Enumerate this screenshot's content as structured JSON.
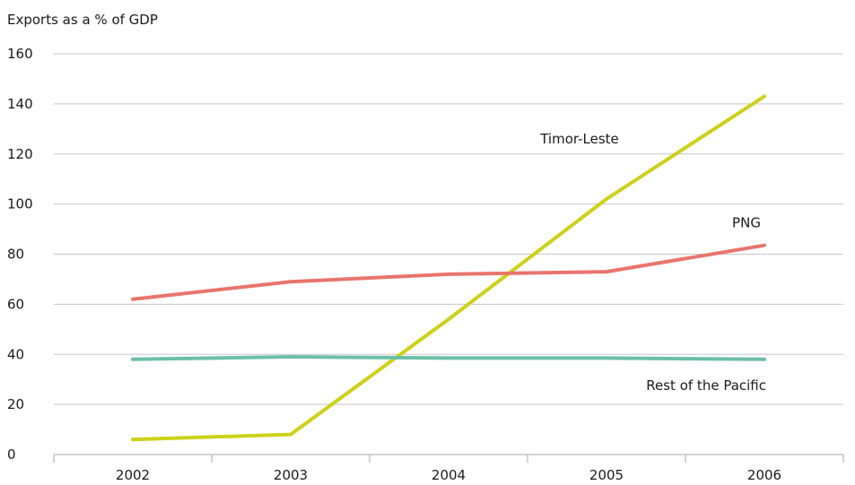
{
  "chart_data": {
    "type": "line",
    "ylabel": "Exports as a % of GDP",
    "ylim": [
      0,
      160
    ],
    "yticks": [
      0,
      20,
      40,
      60,
      80,
      100,
      120,
      140,
      160
    ],
    "categories": [
      "2002",
      "2003",
      "2004",
      "2005",
      "2006"
    ],
    "grid": "horizontal",
    "legend": "inline-labels",
    "series": [
      {
        "name": "Timor-Leste",
        "color": "#cdd11a",
        "values": [
          6,
          8,
          54,
          102,
          143
        ]
      },
      {
        "name": "PNG",
        "color": "#e8756c",
        "values": [
          62,
          69,
          72,
          73,
          83.5
        ]
      },
      {
        "name": "Rest of the Pacific",
        "color": "#6dbfa6",
        "values": [
          38,
          39,
          38.5,
          38.5,
          38
        ]
      }
    ]
  }
}
